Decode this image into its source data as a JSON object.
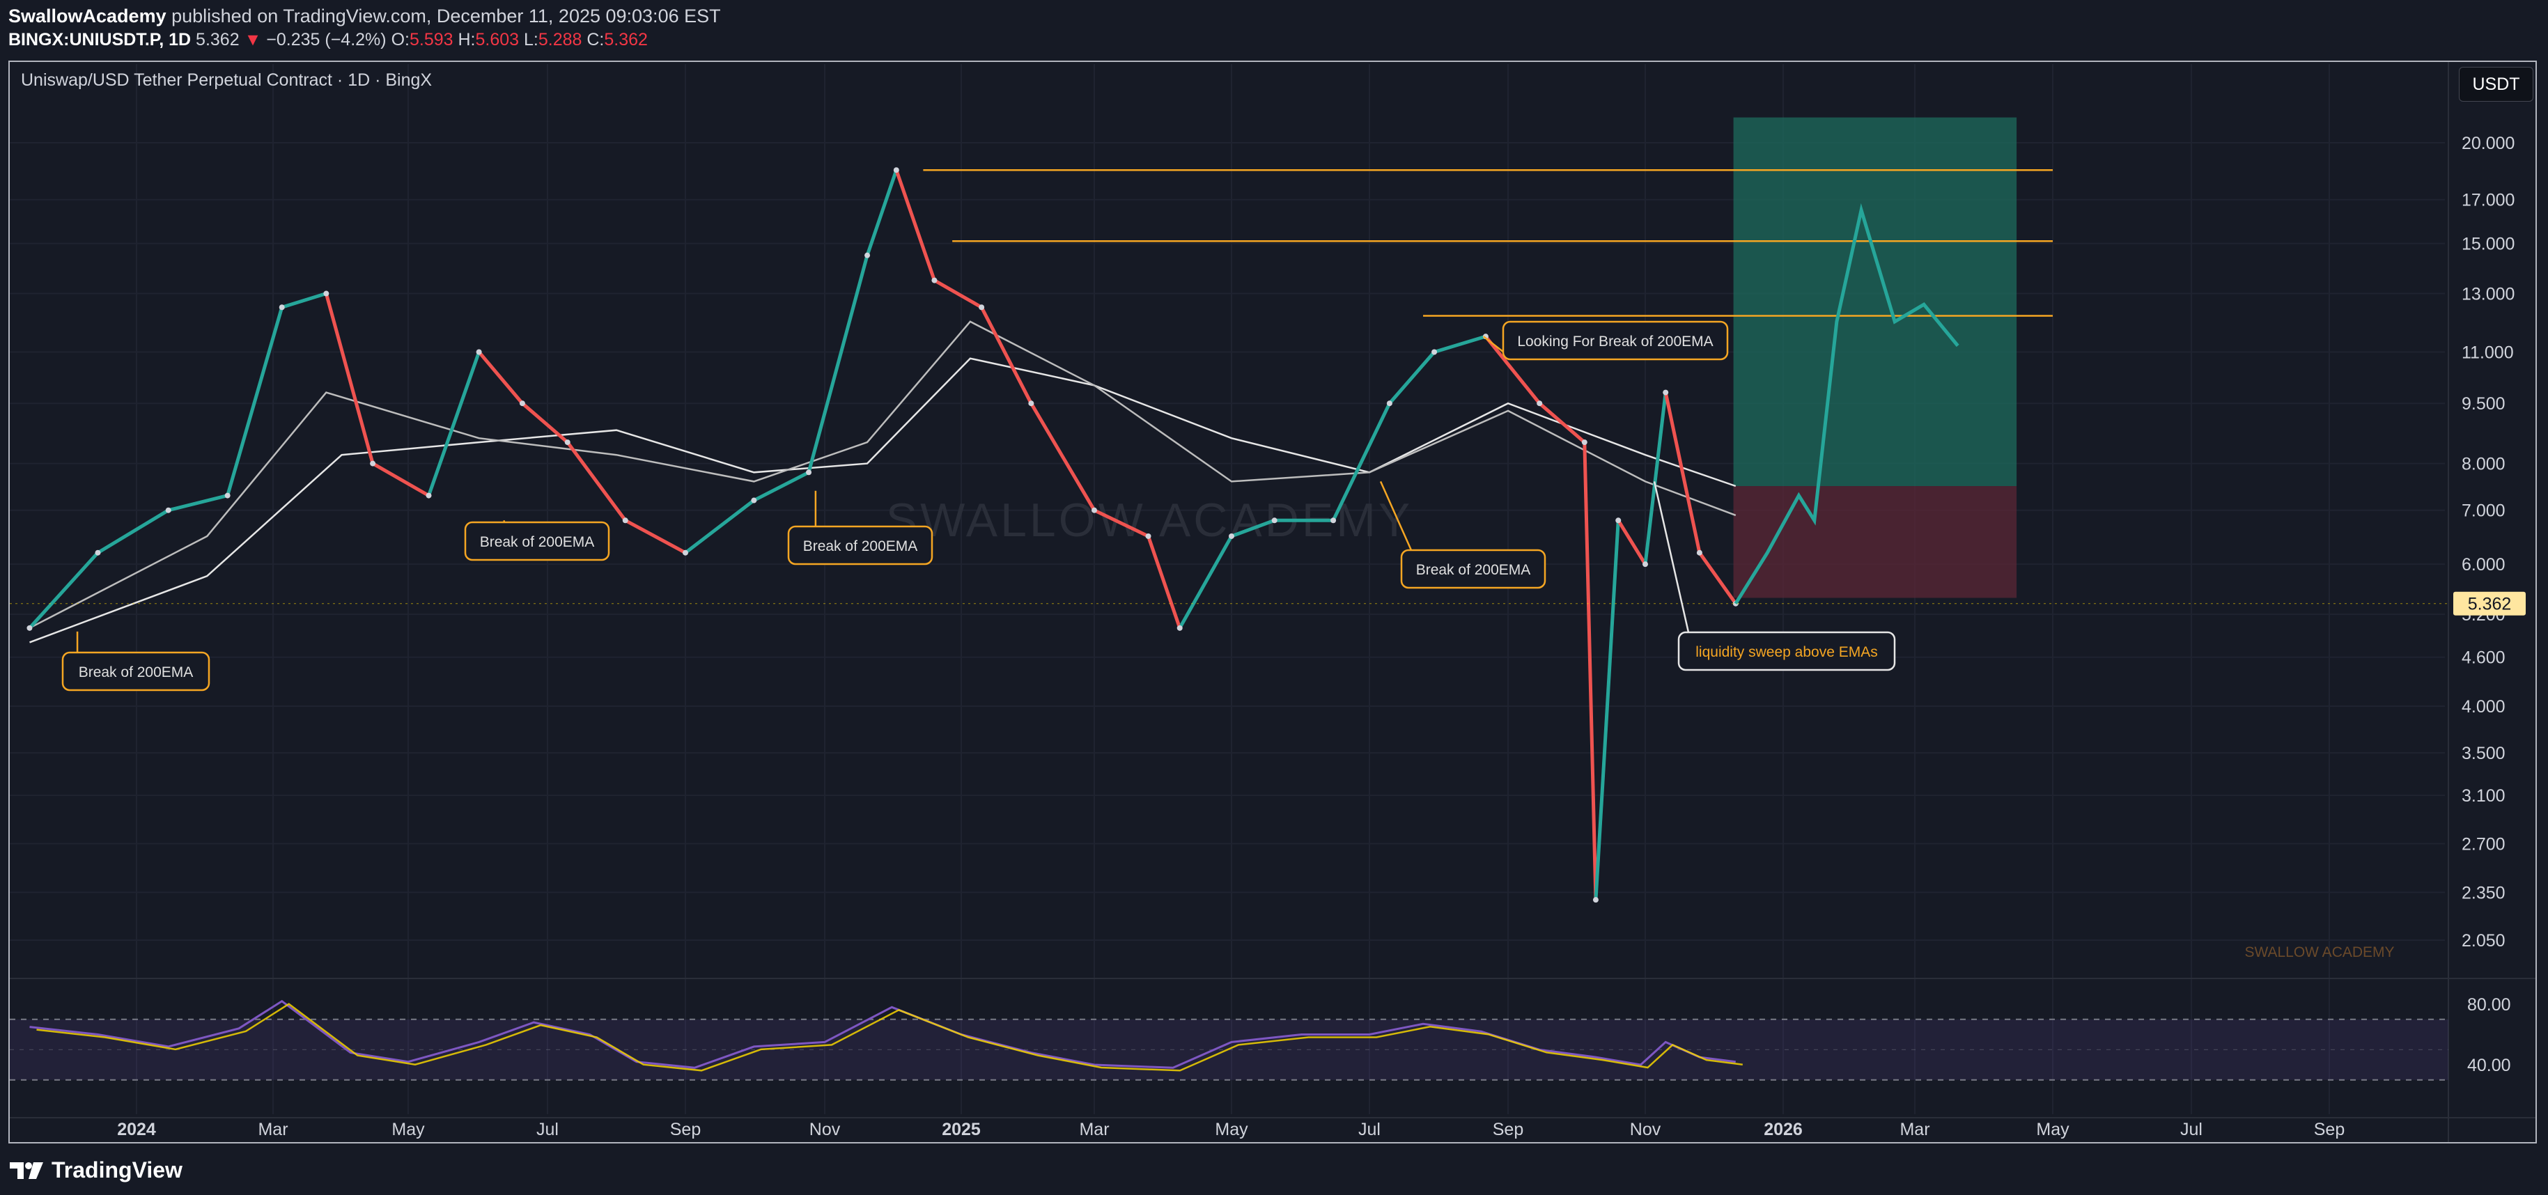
{
  "header": {
    "author": "SwallowAcademy",
    "published": "published on TradingView.com, December 11, 2025 09:03:06 EST",
    "symbol": "BINGX:UNIUSDT.P, 1D",
    "last": "5.362",
    "change": "−0.235 (−4.2%)",
    "open_label": "O:",
    "open": "5.593",
    "high_label": "H:",
    "high": "5.603",
    "low_label": "L:",
    "low": "5.288",
    "close_label": "C:",
    "close": "5.362"
  },
  "chart_title": "Uniswap/USD Tether Perpetual Contract · 1D · BingX",
  "currency_button": "USDT",
  "watermark": "SWALLOW ACADEMY",
  "watermark_small": "SWALLOW ACADEMY",
  "brand": "TradingView",
  "colors": {
    "background": "#161a25",
    "bull": "#26a69a",
    "bear": "#ef5350",
    "level": "#f5a623",
    "rsi": "#7e57c2",
    "rsi_ma": "#f5d300",
    "target_zone": "#1e6b5c",
    "stop_zone": "#5b2736"
  },
  "chart_data": {
    "type": "line",
    "y_scale": "log",
    "price_axis_ticks": [
      20,
      17,
      15,
      13,
      11,
      9.5,
      8,
      7,
      6,
      5.2,
      4.6,
      4,
      3.5,
      3.1,
      2.7,
      2.35,
      2.05
    ],
    "price_axis_labels": [
      "20.000",
      "17.000",
      "15.000",
      "13.000",
      "11.000",
      "9.500",
      "8.000",
      "7.000",
      "6.000",
      "5.200",
      "4.600",
      "4.000",
      "3.500",
      "3.100",
      "2.700",
      "2.350",
      "2.050"
    ],
    "last_price": 5.362,
    "last_price_label": "5.362",
    "time_axis_labels": [
      "2024",
      "Mar",
      "May",
      "Jul",
      "Sep",
      "Nov",
      "2025",
      "Mar",
      "May",
      "Jul",
      "Sep",
      "Nov",
      "2026",
      "Mar",
      "May",
      "Jul",
      "Sep"
    ],
    "time_axis_dates": [
      "2024-01-01",
      "2024-03-01",
      "2024-05-01",
      "2024-07-01",
      "2024-09-01",
      "2024-11-01",
      "2025-01-01",
      "2025-03-01",
      "2025-05-01",
      "2025-07-01",
      "2025-09-01",
      "2025-11-01",
      "2026-01-01",
      "2026-03-01",
      "2026-05-01",
      "2026-07-01",
      "2026-09-01"
    ],
    "series": [
      {
        "x": [
          "2023-11-15",
          "2023-12-15",
          "2024-01-15",
          "2024-02-10",
          "2024-03-05",
          "2024-03-25",
          "2024-04-15",
          "2024-05-10",
          "2024-06-01",
          "2024-06-20",
          "2024-07-10",
          "2024-08-05",
          "2024-09-01",
          "2024-10-01",
          "2024-10-25",
          "2024-11-20",
          "2024-12-03",
          "2024-12-20",
          "2025-01-10",
          "2025-02-01",
          "2025-03-01",
          "2025-03-25",
          "2025-04-08",
          "2025-05-01",
          "2025-05-20",
          "2025-06-15",
          "2025-07-10",
          "2025-07-30",
          "2025-08-22",
          "2025-09-15",
          "2025-10-05",
          "2025-10-10",
          "2025-10-20",
          "2025-11-01",
          "2025-11-10",
          "2025-11-25",
          "2025-12-11"
        ],
        "values": [
          5.0,
          6.2,
          7.0,
          7.3,
          12.5,
          13.0,
          8.0,
          7.3,
          11.0,
          9.5,
          8.5,
          6.8,
          6.2,
          7.2,
          7.8,
          14.5,
          18.5,
          13.5,
          12.5,
          9.5,
          7.0,
          6.5,
          5.0,
          6.5,
          6.8,
          6.8,
          9.5,
          11.0,
          11.5,
          9.5,
          8.5,
          2.3,
          6.8,
          6.0,
          9.8,
          6.2,
          5.362
        ]
      },
      {
        "name": "200EMA",
        "x": [
          "2023-11-15",
          "2024-02-01",
          "2024-04-01",
          "2024-06-01",
          "2024-08-01",
          "2024-10-01",
          "2024-11-20",
          "2025-01-05",
          "2025-03-01",
          "2025-05-01",
          "2025-07-01",
          "2025-09-01",
          "2025-11-01",
          "2025-12-11"
        ],
        "values": [
          4.8,
          5.8,
          8.2,
          8.5,
          8.8,
          7.8,
          8.0,
          10.8,
          10.0,
          8.6,
          7.8,
          9.5,
          8.2,
          7.5
        ]
      },
      {
        "x": [
          "2023-11-15",
          "2024-02-01",
          "2024-03-25",
          "2024-06-01",
          "2024-08-01",
          "2024-10-01",
          "2024-11-20",
          "2025-01-05",
          "2025-03-01",
          "2025-05-01",
          "2025-07-01",
          "2025-09-01",
          "2025-11-01",
          "2025-12-11"
        ],
        "values": [
          5.0,
          6.5,
          9.8,
          8.6,
          8.2,
          7.6,
          8.5,
          12.0,
          10.0,
          7.6,
          7.8,
          9.3,
          7.6,
          6.9
        ]
      }
    ],
    "projection": {
      "x": [
        "2025-12-11",
        "2025-12-25",
        "2026-01-08",
        "2026-01-15",
        "2026-01-25",
        "2026-02-05",
        "2026-02-20",
        "2026-03-05",
        "2026-03-20"
      ],
      "values": [
        5.362,
        6.2,
        7.3,
        6.8,
        12.0,
        16.5,
        12.0,
        12.6,
        11.2
      ]
    },
    "horizontal_levels": [
      {
        "value": 18.5,
        "from": "2024-12-15",
        "to": "2026-05-01"
      },
      {
        "value": 15.1,
        "from": "2024-12-28",
        "to": "2026-05-01"
      },
      {
        "value": 12.2,
        "from": "2025-07-25",
        "to": "2026-05-01"
      }
    ],
    "position_box": {
      "from": "2025-12-10",
      "to": "2026-04-15",
      "target": 21.5,
      "entry": 7.5,
      "stop": 5.45
    },
    "annotations": [
      {
        "text": "Break of 200EMA",
        "x": "2023-12-06",
        "y": 4.95
      },
      {
        "text": "Break of 200EMA",
        "x": "2024-06-12",
        "y": 6.8
      },
      {
        "text": "Break of 200EMA",
        "x": "2024-10-28",
        "y": 7.4
      },
      {
        "text": "Looking For Break of 200EMA",
        "x": "2025-08-21",
        "y": 11.5
      },
      {
        "text": "Break of 200EMA",
        "x": "2025-07-06",
        "y": 7.6
      },
      {
        "text": "liquidity sweep above EMAs",
        "x": "2025-11-05",
        "y": 7.6
      }
    ],
    "rsi": {
      "axis_ticks": [
        80,
        40
      ],
      "axis_labels": [
        "80.00",
        "40.00"
      ],
      "upper_band": 70,
      "lower_band": 30,
      "x": [
        "2023-11-15",
        "2023-12-15",
        "2024-01-15",
        "2024-02-15",
        "2024-03-05",
        "2024-04-05",
        "2024-05-01",
        "2024-06-01",
        "2024-06-25",
        "2024-07-20",
        "2024-08-10",
        "2024-09-05",
        "2024-10-01",
        "2024-11-01",
        "2024-12-01",
        "2025-01-01",
        "2025-02-01",
        "2025-03-01",
        "2025-04-05",
        "2025-05-01",
        "2025-06-01",
        "2025-07-01",
        "2025-07-25",
        "2025-08-20",
        "2025-09-15",
        "2025-10-10",
        "2025-10-30",
        "2025-11-10",
        "2025-11-25",
        "2025-12-11"
      ],
      "values": [
        65,
        60,
        52,
        64,
        82,
        48,
        42,
        55,
        68,
        60,
        42,
        38,
        52,
        55,
        78,
        60,
        48,
        40,
        38,
        55,
        60,
        60,
        67,
        62,
        50,
        45,
        40,
        55,
        45,
        42
      ]
    }
  }
}
